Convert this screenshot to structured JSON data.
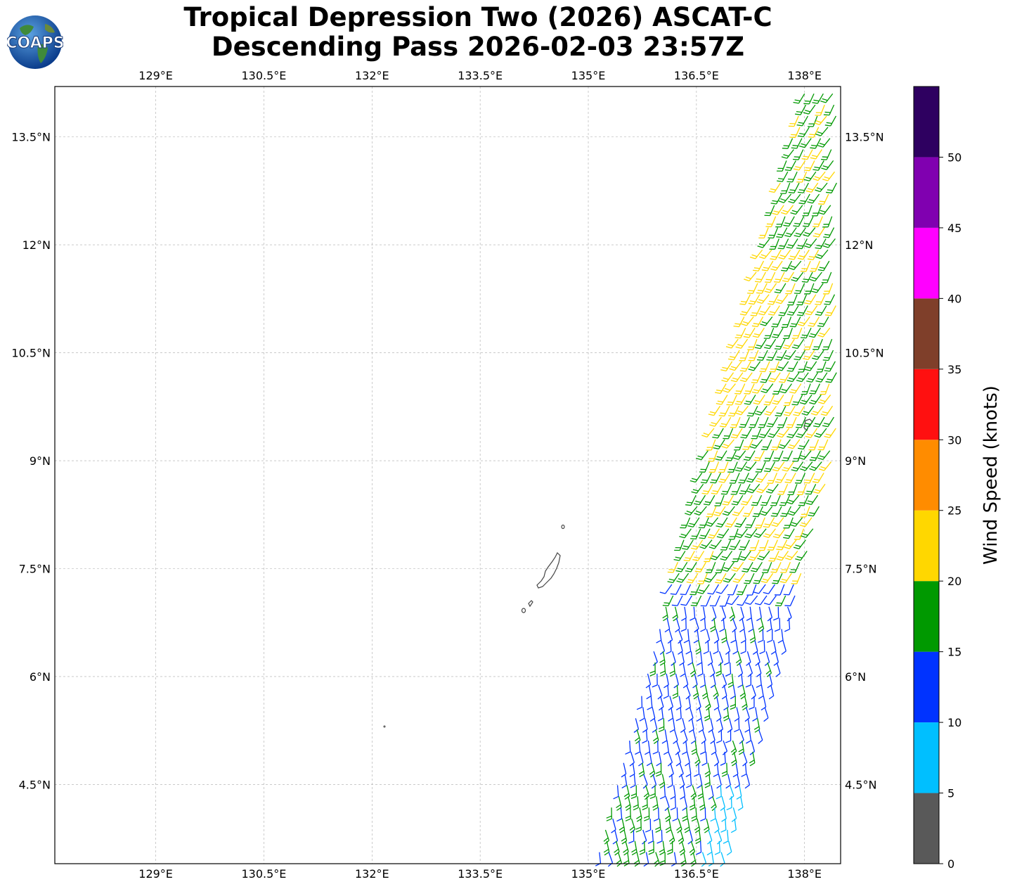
{
  "title": {
    "line1": "Tropical Depression Two (2026) ASCAT-C",
    "line2": "Descending Pass 2026-02-03 23:57Z"
  },
  "logo": {
    "text": "COAPS",
    "icon": "globe-logo-icon"
  },
  "map": {
    "lon_range": [
      127.6,
      138.5
    ],
    "lat_range": [
      3.4,
      14.2
    ],
    "lon_ticks": [
      {
        "value": 129,
        "label": "129°E"
      },
      {
        "value": 130.5,
        "label": "130.5°E"
      },
      {
        "value": 132,
        "label": "132°E"
      },
      {
        "value": 133.5,
        "label": "133.5°E"
      },
      {
        "value": 135,
        "label": "135°E"
      },
      {
        "value": 136.5,
        "label": "136.5°E"
      },
      {
        "value": 138,
        "label": "138°E"
      }
    ],
    "lat_ticks": [
      {
        "value": 13.5,
        "label": "13.5°N"
      },
      {
        "value": 12,
        "label": "12°N"
      },
      {
        "value": 10.5,
        "label": "10.5°N"
      },
      {
        "value": 9,
        "label": "9°N"
      },
      {
        "value": 7.5,
        "label": "7.5°N"
      },
      {
        "value": 6,
        "label": "6°N"
      },
      {
        "value": 4.5,
        "label": "4.5°N"
      }
    ],
    "grid": true,
    "colors": {
      "coast": "#444444",
      "grid": "#aaaaaa"
    }
  },
  "colorbar": {
    "label": "Wind Speed (knots)",
    "bins": [
      {
        "min": 0,
        "max": 5,
        "color": "#595959"
      },
      {
        "min": 5,
        "max": 10,
        "color": "#00bfff"
      },
      {
        "min": 10,
        "max": 15,
        "color": "#0033ff"
      },
      {
        "min": 15,
        "max": 20,
        "color": "#009900"
      },
      {
        "min": 20,
        "max": 25,
        "color": "#ffd700"
      },
      {
        "min": 25,
        "max": 30,
        "color": "#ff8c00"
      },
      {
        "min": 30,
        "max": 35,
        "color": "#ff1010"
      },
      {
        "min": 35,
        "max": 40,
        "color": "#7f3f2a"
      },
      {
        "min": 40,
        "max": 45,
        "color": "#ff00ff"
      },
      {
        "min": 45,
        "max": 50,
        "color": "#8000b0"
      },
      {
        "min": 50,
        "max": 55,
        "color": "#2e0060"
      }
    ],
    "ticks": [
      "0",
      "5",
      "10",
      "15",
      "20",
      "25",
      "30",
      "35",
      "40",
      "45",
      "50"
    ]
  }
}
